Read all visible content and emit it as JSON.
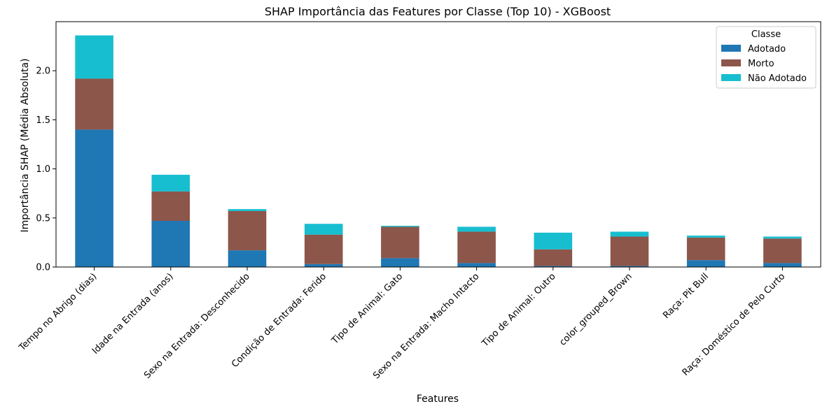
{
  "chart_data": {
    "type": "bar",
    "stacked": true,
    "title": "SHAP Importância das Features por Classe (Top 10) - XGBoost",
    "xlabel": "Features",
    "ylabel": "Importância SHAP (Média Absoluta)",
    "ylim": [
      0,
      2.5
    ],
    "yticks": [
      "0.0",
      "0.5",
      "1.0",
      "1.5",
      "2.0"
    ],
    "categories": [
      "Tempo no Abrigo (dias)",
      "Idade na Entrada (anos)",
      "Sexo na Entrada: Desconhecido",
      "Condição de Entrada: Ferido",
      "Tipo de Animal: Gato",
      "Sexo na Entrada: Macho Intacto",
      "Tipo de Animal: Outro",
      "color_grouped_Brown",
      "Raça: Pit Bull",
      "Raça: Doméstico de Pelo Curto"
    ],
    "series": [
      {
        "name": "Adotado",
        "color": "#1f77b4",
        "values": [
          1.4,
          0.47,
          0.17,
          0.03,
          0.09,
          0.04,
          0.01,
          0.01,
          0.07,
          0.04
        ]
      },
      {
        "name": "Morto",
        "color": "#8c564b",
        "values": [
          0.52,
          0.3,
          0.4,
          0.3,
          0.32,
          0.32,
          0.17,
          0.3,
          0.23,
          0.25
        ]
      },
      {
        "name": "Não Adotado",
        "color": "#17becf",
        "values": [
          0.44,
          0.17,
          0.02,
          0.11,
          0.01,
          0.05,
          0.17,
          0.05,
          0.02,
          0.02
        ]
      }
    ],
    "legend": {
      "title": "Classe",
      "placement": "top-right"
    },
    "grid": false
  }
}
